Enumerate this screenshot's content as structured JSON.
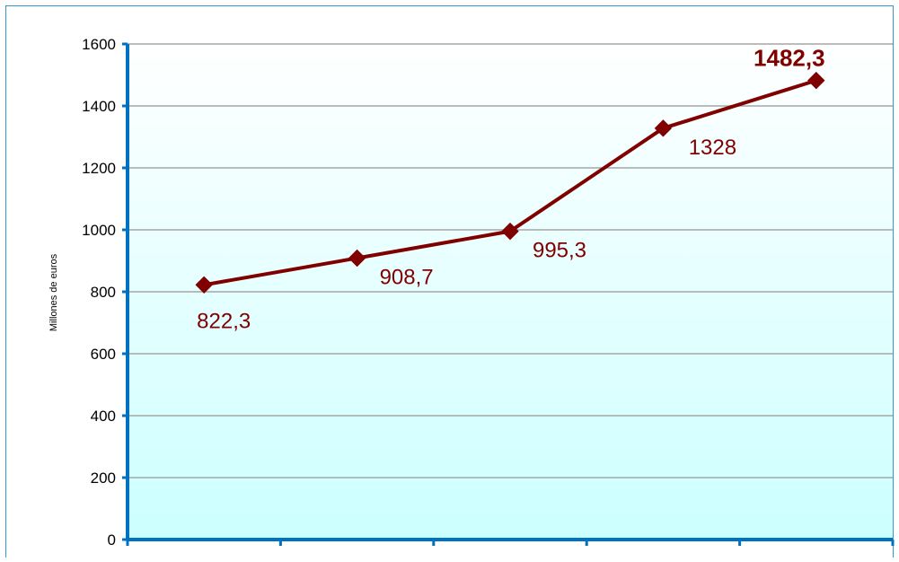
{
  "chart_data": {
    "type": "line",
    "title": "",
    "xlabel": "",
    "ylabel": "Millones de euros",
    "ylim": [
      0,
      1600
    ],
    "yticks": [
      0,
      200,
      400,
      600,
      800,
      1000,
      1200,
      1400,
      1600
    ],
    "ytick_labels": [
      "0",
      "200",
      "400",
      "600",
      "800",
      "1000",
      "1200",
      "1400",
      "1600"
    ],
    "grid": true,
    "legend": "none",
    "series": [
      {
        "values": [
          822.3,
          908.7,
          995.3,
          1328,
          1482.3
        ],
        "data_labels": [
          "822,3",
          "908,7",
          "995,3",
          "1328",
          "1482,3"
        ],
        "color": "#800000"
      }
    ],
    "axis_color": "#0070C0",
    "background_gradient": [
      "#FFFFFF",
      "#CCFFFF"
    ]
  }
}
